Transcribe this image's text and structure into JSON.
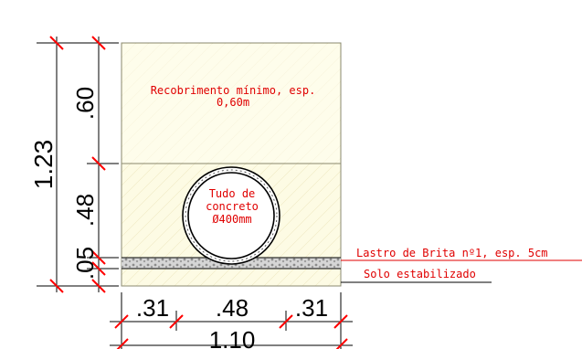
{
  "labels": {
    "cover": [
      "Recobrimento mínimo, esp.",
      "0,60m"
    ],
    "pipe": [
      "Tudo de",
      "concreto",
      "Ø400mm"
    ],
    "gravel_bed": "Lastro de Brita nº1, esp. 5cm",
    "stabilized_soil": "Solo estabilizado"
  },
  "dimensions": {
    "total_height": "1.23",
    "cover_height": ".60",
    "pipe_height": ".48",
    "bed_height": ".05",
    "left_width": ".31",
    "pipe_width": ".48",
    "right_width": ".31",
    "total_width": "1.10"
  },
  "colors": {
    "trench_fill": "#fdfbe4",
    "cover_fill": "#fffff0",
    "annotation_red": "#e00000",
    "gravel": "#bdbdbd",
    "line": "#000000"
  }
}
